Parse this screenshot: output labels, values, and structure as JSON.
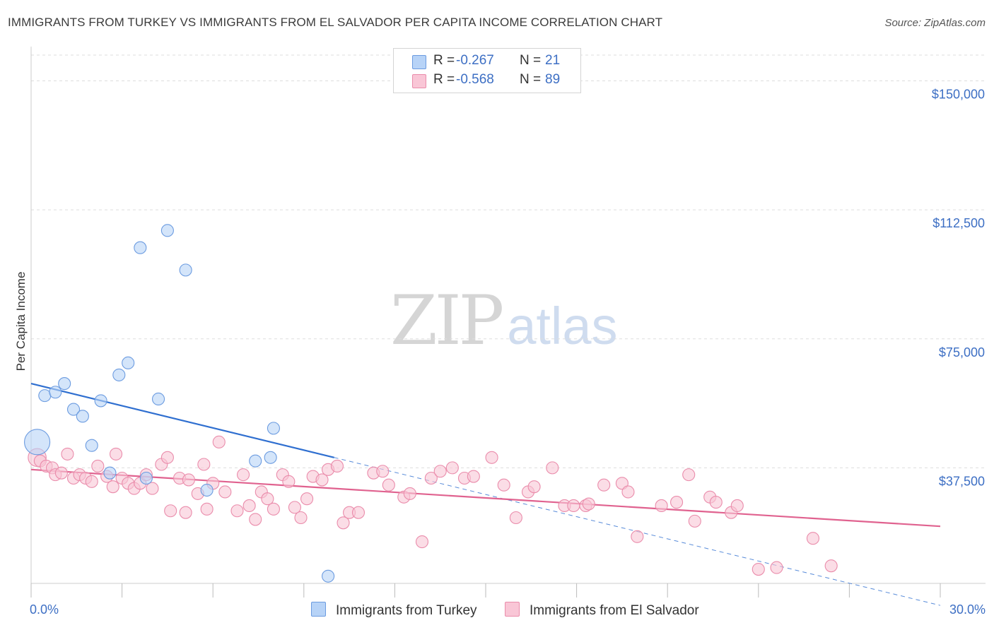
{
  "title": "IMMIGRANTS FROM TURKEY VS IMMIGRANTS FROM EL SALVADOR PER CAPITA INCOME CORRELATION CHART",
  "source": "Source: ZipAtlas.com",
  "watermark": {
    "zip": "ZIP",
    "atlas": "atlas"
  },
  "colors": {
    "turkey_fill": "#b7d3f7",
    "turkey_stroke": "#6b9be0",
    "turkey_line": "#2f6fd0",
    "elsalvador_fill": "#f9c6d6",
    "elsalvador_stroke": "#ea8cab",
    "elsalvador_line": "#e0628f",
    "accent_text": "#3d6fc4",
    "grid": "#dddddd"
  },
  "legend": {
    "rows": [
      {
        "r_label": "R =",
        "r_value": "-0.267",
        "n_label": "N =",
        "n_value": "21"
      },
      {
        "r_label": "R =",
        "r_value": "-0.568",
        "n_label": "N =",
        "n_value": "89"
      }
    ]
  },
  "bottom_legend": {
    "turkey": "Immigrants from Turkey",
    "elsalvador": "Immigrants from El Salvador"
  },
  "chart_data": {
    "type": "scatter",
    "title": "IMMIGRANTS FROM TURKEY VS IMMIGRANTS FROM EL SALVADOR PER CAPITA INCOME CORRELATION CHART",
    "xlabel": "",
    "ylabel": "Per Capita Income",
    "xlim": [
      0,
      30
    ],
    "ylim": [
      0,
      157500
    ],
    "x_tick_labels": [
      "0.0%",
      "30.0%"
    ],
    "y_ticks": [
      37500,
      75000,
      112500,
      150000
    ],
    "y_tick_labels": [
      "$37,500",
      "$75,000",
      "$112,500",
      "$150,000"
    ],
    "grid": true,
    "series": [
      {
        "name": "Immigrants from Turkey",
        "points": [
          [
            0.2,
            45000,
            4
          ],
          [
            0.45,
            58500,
            1
          ],
          [
            0.8,
            59500,
            1
          ],
          [
            1.1,
            62000,
            1
          ],
          [
            1.4,
            54500,
            1
          ],
          [
            1.7,
            52500,
            1
          ],
          [
            2.0,
            44000,
            1
          ],
          [
            2.3,
            57000,
            1
          ],
          [
            2.6,
            36000,
            1
          ],
          [
            2.9,
            64500,
            1
          ],
          [
            3.2,
            68000,
            1
          ],
          [
            3.6,
            101500,
            1
          ],
          [
            3.8,
            34500,
            1
          ],
          [
            4.2,
            57500,
            1
          ],
          [
            4.5,
            106500,
            1
          ],
          [
            5.1,
            95000,
            1
          ],
          [
            5.8,
            31000,
            1
          ],
          [
            7.4,
            39500,
            1
          ],
          [
            7.9,
            40500,
            1
          ],
          [
            8.0,
            49000,
            1
          ],
          [
            9.8,
            6000,
            1
          ]
        ],
        "trend": {
          "x": [
            0,
            10
          ],
          "y": [
            62000,
            40500
          ]
        },
        "trend_extension": {
          "x": [
            10,
            30
          ],
          "y": [
            40500,
            -2500
          ]
        }
      },
      {
        "name": "Immigrants from El Salvador",
        "points": [
          [
            0.2,
            40500,
            2
          ],
          [
            0.3,
            39500,
            1
          ],
          [
            0.5,
            38000,
            1
          ],
          [
            0.7,
            37500,
            1
          ],
          [
            0.8,
            35500,
            1
          ],
          [
            1.0,
            36000,
            1
          ],
          [
            1.2,
            41500,
            1
          ],
          [
            1.4,
            34500,
            1
          ],
          [
            1.6,
            35500,
            1
          ],
          [
            1.8,
            34500,
            1
          ],
          [
            2.0,
            33500,
            1
          ],
          [
            2.2,
            38000,
            1
          ],
          [
            2.5,
            35000,
            1
          ],
          [
            2.7,
            32000,
            1
          ],
          [
            2.8,
            41500,
            1
          ],
          [
            3.0,
            34500,
            1
          ],
          [
            3.2,
            33000,
            1
          ],
          [
            3.4,
            31500,
            1
          ],
          [
            3.6,
            33000,
            1
          ],
          [
            3.8,
            35500,
            1
          ],
          [
            4.0,
            31500,
            1
          ],
          [
            4.3,
            38500,
            1
          ],
          [
            4.5,
            40500,
            1
          ],
          [
            4.6,
            25000,
            1
          ],
          [
            4.9,
            34500,
            1
          ],
          [
            5.1,
            24500,
            1
          ],
          [
            5.2,
            34000,
            1
          ],
          [
            5.5,
            30000,
            1
          ],
          [
            5.7,
            38500,
            1
          ],
          [
            5.8,
            25500,
            1
          ],
          [
            6.0,
            33000,
            1
          ],
          [
            6.2,
            45000,
            1
          ],
          [
            6.4,
            30500,
            1
          ],
          [
            6.8,
            25000,
            1
          ],
          [
            7.0,
            35500,
            1
          ],
          [
            7.2,
            26500,
            1
          ],
          [
            7.4,
            22500,
            1
          ],
          [
            7.6,
            30500,
            1
          ],
          [
            7.8,
            28500,
            1
          ],
          [
            8.0,
            25500,
            1
          ],
          [
            8.3,
            35500,
            1
          ],
          [
            8.5,
            33500,
            1
          ],
          [
            8.7,
            26000,
            1
          ],
          [
            8.9,
            23000,
            1
          ],
          [
            9.1,
            28500,
            1
          ],
          [
            9.3,
            35000,
            1
          ],
          [
            9.6,
            34000,
            1
          ],
          [
            9.8,
            37000,
            1
          ],
          [
            10.1,
            38000,
            1
          ],
          [
            10.3,
            21500,
            1
          ],
          [
            10.5,
            24500,
            1
          ],
          [
            10.8,
            24500,
            1
          ],
          [
            11.3,
            36000,
            1
          ],
          [
            11.6,
            36500,
            1
          ],
          [
            11.8,
            32500,
            1
          ],
          [
            12.3,
            29000,
            1
          ],
          [
            12.5,
            30000,
            1
          ],
          [
            12.9,
            16000,
            1
          ],
          [
            13.2,
            34500,
            1
          ],
          [
            13.5,
            36500,
            1
          ],
          [
            13.9,
            37500,
            1
          ],
          [
            14.3,
            34500,
            1
          ],
          [
            14.6,
            35000,
            1
          ],
          [
            15.2,
            40500,
            1
          ],
          [
            15.6,
            32500,
            1
          ],
          [
            16.0,
            23000,
            1
          ],
          [
            16.4,
            30500,
            1
          ],
          [
            16.6,
            32000,
            1
          ],
          [
            17.2,
            37500,
            1
          ],
          [
            17.6,
            26500,
            1
          ],
          [
            17.9,
            26500,
            1
          ],
          [
            18.3,
            26500,
            1
          ],
          [
            18.4,
            27000,
            1
          ],
          [
            18.9,
            32500,
            1
          ],
          [
            19.5,
            33000,
            1
          ],
          [
            19.7,
            30500,
            1
          ],
          [
            20.0,
            17500,
            1
          ],
          [
            20.8,
            26500,
            1
          ],
          [
            21.3,
            27500,
            1
          ],
          [
            21.7,
            35500,
            1
          ],
          [
            21.9,
            22000,
            1
          ],
          [
            22.4,
            29000,
            1
          ],
          [
            22.6,
            27500,
            1
          ],
          [
            23.1,
            24500,
            1
          ],
          [
            23.3,
            26500,
            1
          ],
          [
            24.0,
            8000,
            1
          ],
          [
            24.6,
            8500,
            1
          ],
          [
            25.8,
            17000,
            1
          ],
          [
            26.4,
            9000,
            1
          ]
        ],
        "trend": {
          "x": [
            0,
            30
          ],
          "y": [
            37000,
            20500
          ]
        }
      }
    ]
  }
}
